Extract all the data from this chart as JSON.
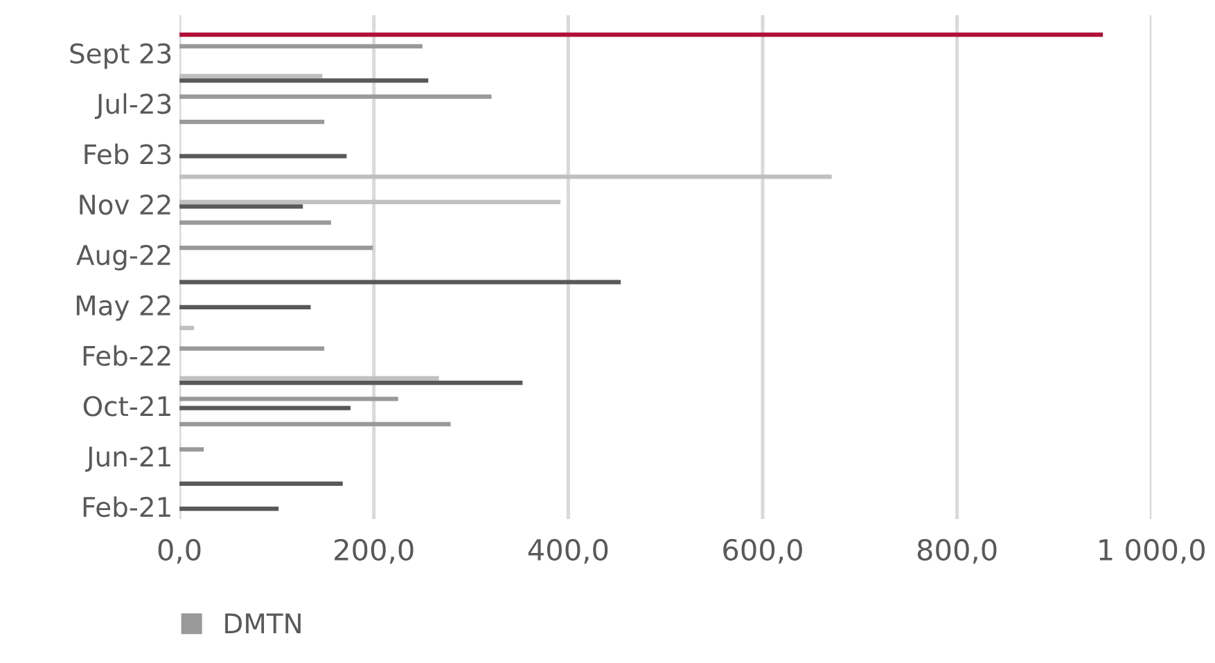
{
  "chart_data": {
    "type": "bar",
    "orientation": "horizontal",
    "categories": [
      null,
      "Sept 23",
      null,
      "Jul-23",
      null,
      "Feb 23",
      null,
      "Nov 22",
      null,
      "Aug-22",
      null,
      "May 22",
      null,
      "Feb-22",
      null,
      "Oct-21",
      null,
      "Jun-21",
      null,
      "Feb-21"
    ],
    "series": [
      {
        "name": "DMTN",
        "color": "#999999",
        "values": [
          null,
          250,
          null,
          321,
          149,
          null,
          null,
          null,
          156,
          199,
          null,
          null,
          null,
          149,
          null,
          225,
          279,
          25,
          null,
          null
        ]
      },
      {
        "color": "#c0c0c0",
        "values": [
          null,
          null,
          147,
          null,
          null,
          null,
          671,
          392,
          null,
          null,
          null,
          null,
          15,
          null,
          267,
          null,
          null,
          null,
          null,
          null
        ]
      },
      {
        "color": "#595959",
        "values": [
          null,
          null,
          256,
          null,
          null,
          172,
          null,
          127,
          null,
          null,
          454,
          135,
          null,
          null,
          353,
          176,
          null,
          null,
          168,
          102
        ]
      },
      {
        "color": "#b01038",
        "values": [
          950,
          null,
          null,
          null,
          null,
          null,
          null,
          null,
          null,
          null,
          null,
          null,
          null,
          null,
          null,
          null,
          null,
          null,
          null,
          null
        ]
      }
    ],
    "xlim": [
      0,
      1000
    ],
    "xticks": [
      {
        "value": 0,
        "label": "0,0"
      },
      {
        "value": 200,
        "label": "200,0"
      },
      {
        "value": 400,
        "label": "400,0"
      },
      {
        "value": 600,
        "label": "600,0"
      },
      {
        "value": 800,
        "label": "800,0"
      },
      {
        "value": 1000,
        "label": "1 000,0"
      }
    ],
    "grid": "x",
    "legend": "bottom"
  }
}
